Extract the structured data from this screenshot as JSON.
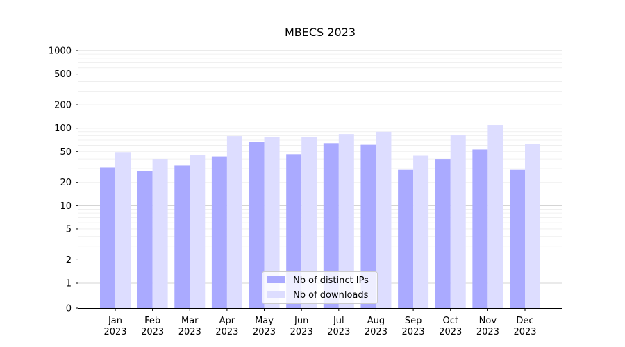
{
  "chart_data": {
    "type": "bar",
    "title": "MBECS 2023",
    "xlabel": "",
    "ylabel": "",
    "y_scale": "symlog",
    "ylim": [
      0,
      1200
    ],
    "y_ticks": [
      0,
      1,
      2,
      5,
      10,
      20,
      50,
      100,
      200,
      500,
      1000
    ],
    "y_tick_labels": [
      "0",
      "1",
      "2",
      "5",
      "10",
      "20",
      "50",
      "100",
      "200",
      "500",
      "1000"
    ],
    "categories": [
      "Jan\n2023",
      "Feb\n2023",
      "Mar\n2023",
      "Apr\n2023",
      "May\n2023",
      "Jun\n2023",
      "Jul\n2023",
      "Aug\n2023",
      "Sep\n2023",
      "Oct\n2023",
      "Nov\n2023",
      "Dec\n2023"
    ],
    "series": [
      {
        "name": "Nb of distinct IPs",
        "color": "#aaaaff",
        "values": [
          31,
          28,
          33,
          43,
          66,
          46,
          64,
          61,
          29,
          40,
          53,
          29
        ]
      },
      {
        "name": "Nb of downloads",
        "color": "#ddddff",
        "values": [
          49,
          40,
          45,
          79,
          77,
          77,
          84,
          90,
          44,
          82,
          110,
          62
        ]
      }
    ],
    "grid": true,
    "legend_position": "bottom-center"
  }
}
